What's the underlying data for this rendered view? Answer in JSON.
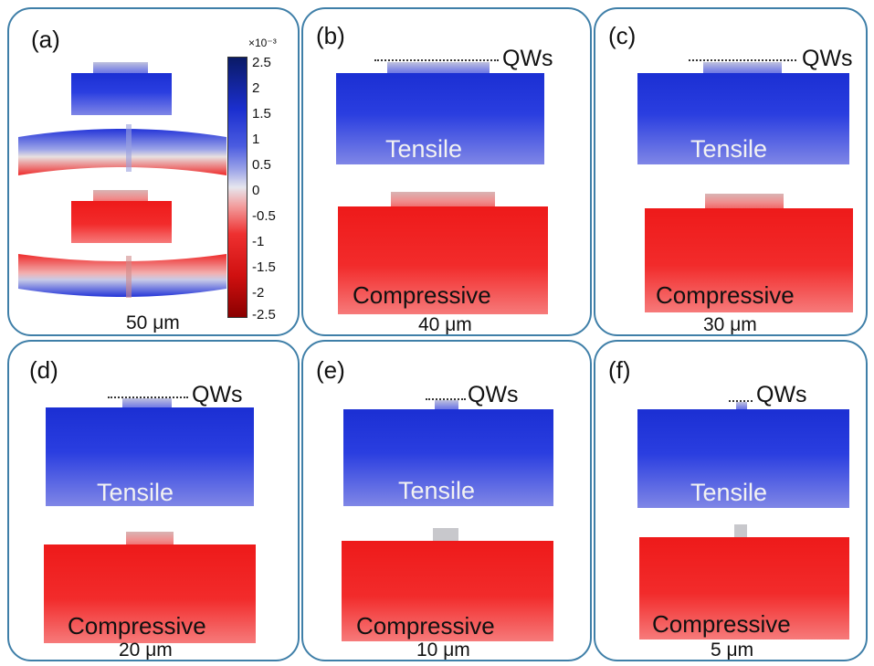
{
  "panels": [
    {
      "id": "a",
      "label": "(a)",
      "size": "50 μm"
    },
    {
      "id": "b",
      "label": "(b)",
      "size": "40 μm",
      "qw": "QWs",
      "tensile": "Tensile",
      "compressive": "Compressive"
    },
    {
      "id": "c",
      "label": "(c)",
      "size": "30 μm",
      "qw": "QWs",
      "tensile": "Tensile",
      "compressive": "Compressive"
    },
    {
      "id": "d",
      "label": "(d)",
      "size": "20 μm",
      "qw": "QWs",
      "tensile": "Tensile",
      "compressive": "Compressive"
    },
    {
      "id": "e",
      "label": "(e)",
      "size": "10 μm",
      "qw": "QWs",
      "tensile": "Tensile",
      "compressive": "Compressive"
    },
    {
      "id": "f",
      "label": "(f)",
      "size": "5 μm",
      "qw": "QWs",
      "tensile": "Tensile",
      "compressive": "Compressive"
    }
  ],
  "colorbar": {
    "exponent": "×10⁻³",
    "ticks": [
      "2.5",
      "2",
      "1.5",
      "1",
      "0.5",
      "0",
      "-0.5",
      "-1",
      "-1.5",
      "-2",
      "-2.5"
    ]
  },
  "colors": {
    "tensile": "#2a3ee0",
    "compressive": "#f22b2b",
    "border": "#3f7fa8"
  }
}
